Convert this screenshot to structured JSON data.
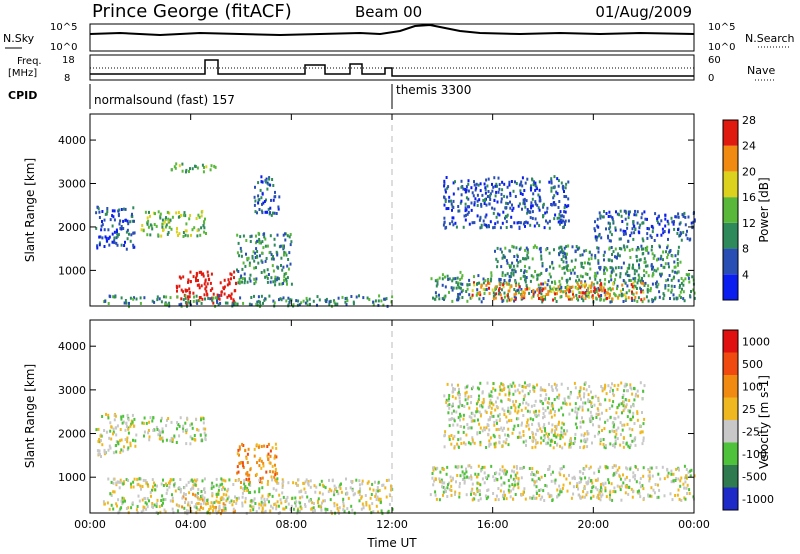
{
  "header": {
    "station": "Prince George (fitACF)",
    "beam": "Beam 00",
    "date": "01/Aug/2009"
  },
  "strip": {
    "nsky_label": "N.Sky",
    "nsky_top": "10^5",
    "nsky_bottom": "10^0",
    "nsearch_label": "N.Search",
    "freq_label": "Freq.",
    "freq_unit": "[MHz]",
    "freq_top": "18",
    "freq_bottom": "8",
    "nave_top": "60",
    "nave_bottom": "0",
    "nave_label": "Nave",
    "cpid_label": "CPID",
    "cpid_1": "normalsound (fast) 157",
    "cpid_2": "themis 3300"
  },
  "chart_data": [
    {
      "type": "heatmap",
      "name": "power",
      "ylabel": "Slant Range [km]",
      "xlabel": "",
      "xlim": [
        0,
        24
      ],
      "ylim": [
        180,
        4600
      ],
      "x_ticks": [
        0,
        4,
        8,
        12,
        16,
        20,
        24
      ],
      "y_ticks": [
        1000,
        2000,
        3000,
        4000
      ],
      "colorbar": {
        "label": "Power [dB]",
        "ticks": [
          "4",
          "8",
          "12",
          "16",
          "20",
          "24",
          "28"
        ],
        "colors": [
          "#0a1ef0",
          "#2a4fb4",
          "#2f8a5b",
          "#59b83a",
          "#dcd21e",
          "#f08a10",
          "#e11a10"
        ]
      },
      "regions": [
        {
          "x": [
            0.2,
            1.8
          ],
          "y": [
            1500,
            2500
          ],
          "level": 1
        },
        {
          "x": [
            2.0,
            4.6
          ],
          "y": [
            1800,
            2400
          ],
          "level": 3
        },
        {
          "x": [
            3.4,
            5.8
          ],
          "y": [
            250,
            1000
          ],
          "level": 7
        },
        {
          "x": [
            5.8,
            8.0
          ],
          "y": [
            700,
            1900
          ],
          "level": 2
        },
        {
          "x": [
            6.5,
            7.5
          ],
          "y": [
            2300,
            3200
          ],
          "level": 1
        },
        {
          "x": [
            0.5,
            12.0
          ],
          "y": [
            200,
            450
          ],
          "level": 2
        },
        {
          "x": [
            13.5,
            24.0
          ],
          "y": [
            300,
            1000
          ],
          "level": 2
        },
        {
          "x": [
            15.0,
            22.0
          ],
          "y": [
            350,
            750
          ],
          "level": 5
        },
        {
          "x": [
            16.0,
            23.5
          ],
          "y": [
            1000,
            1600
          ],
          "level": 2
        },
        {
          "x": [
            14.0,
            19.0
          ],
          "y": [
            2000,
            3200
          ],
          "level": 1
        },
        {
          "x": [
            20.0,
            24.0
          ],
          "y": [
            1700,
            2400
          ],
          "level": 1
        },
        {
          "x": [
            3.0,
            5.0
          ],
          "y": [
            3300,
            3500
          ],
          "level": 3
        }
      ]
    },
    {
      "type": "heatmap",
      "name": "velocity",
      "ylabel": "Slant Range [km]",
      "xlabel": "Time UT",
      "xlim": [
        0,
        24
      ],
      "ylim": [
        180,
        4600
      ],
      "x_ticks": [
        0,
        4,
        8,
        12,
        16,
        20,
        24
      ],
      "x_tick_labels": [
        "00:00",
        "04:00",
        "08:00",
        "12:00",
        "16:00",
        "20:00",
        "00:00"
      ],
      "y_ticks": [
        1000,
        2000,
        3000,
        4000
      ],
      "colorbar": {
        "label": "Velocity [m s-1]",
        "ticks": [
          "1000",
          "500",
          "100",
          "25",
          "-25",
          "-100",
          "-500",
          "-1000"
        ],
        "colors": [
          "#1e2ac8",
          "#2f7a4f",
          "#4ec23a",
          "#c8c8c8",
          "#f0b820",
          "#f08a10",
          "#f04a10",
          "#e11010"
        ]
      },
      "regions": [
        {
          "x": [
            0.2,
            1.8
          ],
          "y": [
            1500,
            2500
          ],
          "level": 3
        },
        {
          "x": [
            2.0,
            4.6
          ],
          "y": [
            1800,
            2400
          ],
          "level": 3
        },
        {
          "x": [
            3.6,
            5.8
          ],
          "y": [
            200,
            650
          ],
          "level": 4
        },
        {
          "x": [
            5.8,
            7.4
          ],
          "y": [
            900,
            1800
          ],
          "level": 5
        },
        {
          "x": [
            0.5,
            12.0
          ],
          "y": [
            200,
            1000
          ],
          "level": 3
        },
        {
          "x": [
            13.5,
            24.0
          ],
          "y": [
            500,
            1300
          ],
          "level": 3
        },
        {
          "x": [
            14.0,
            22.0
          ],
          "y": [
            1700,
            3200
          ],
          "level": 3
        }
      ]
    }
  ]
}
